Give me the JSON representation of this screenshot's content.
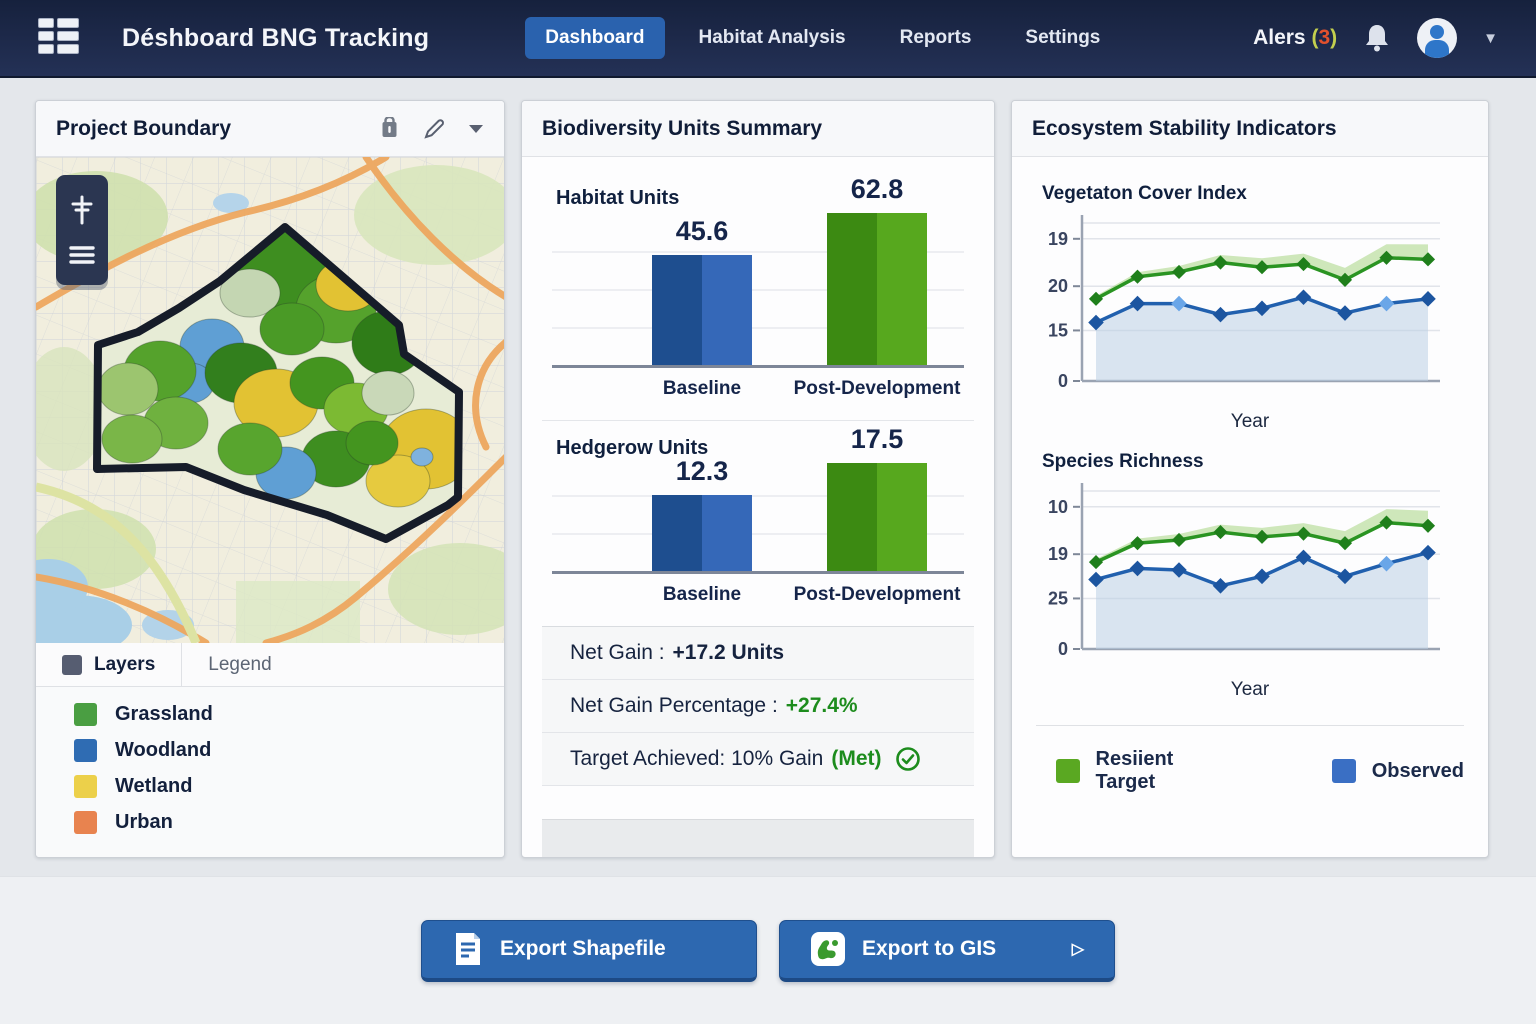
{
  "nav": {
    "title": "Déshboard BNG Tracking",
    "tabs": [
      {
        "label": "Dashboard",
        "active": true
      },
      {
        "label": "Habitat Analysis",
        "active": false
      },
      {
        "label": "Reports",
        "active": false
      },
      {
        "label": "Settings",
        "active": false
      }
    ],
    "alerts": {
      "label": "Alers",
      "count": "3",
      "paren_color": "#c3cf4e",
      "count_color": "#e2512d"
    }
  },
  "map_panel": {
    "title": "Project Boundary",
    "header_icons": [
      "trash-icon",
      "edit-pencil-icon",
      "chevron-down-icon"
    ],
    "tabs": [
      {
        "label": "Layers",
        "active": true
      },
      {
        "label": "Legend",
        "active": false
      }
    ],
    "legend": [
      {
        "label": "Grassland",
        "color": "#4a9e42"
      },
      {
        "label": "Woodland",
        "color": "#2f6cb3"
      },
      {
        "label": "Wetland",
        "color": "#ecd04a"
      },
      {
        "label": "Urban",
        "color": "#e8834f"
      }
    ]
  },
  "units_panel": {
    "title": "Biodiversity Units Summary",
    "stats": [
      {
        "prefix": "Net Gain :",
        "value": "+17.2 Units",
        "value_color": "#16233f",
        "check": false
      },
      {
        "prefix": "Net Gain Percentage :",
        "value": "+27.4%",
        "value_color": "#1d8c1d",
        "check": false
      },
      {
        "prefix": "Target Achieved: 10% Gain",
        "value": "(Met)",
        "value_color": "#1d8c1d",
        "check": true
      }
    ]
  },
  "eco_panel": {
    "title": "Ecosystem Stability Indicators",
    "legend": [
      {
        "label": "Resiient Target",
        "color": "#5aa822"
      },
      {
        "label": "Observed",
        "color": "#3a6fc4"
      }
    ]
  },
  "footer": {
    "buttons": [
      {
        "label": "Export Shapefile",
        "icon": "document-icon",
        "arrow": ""
      },
      {
        "label": "Export to GIS",
        "icon": "gis-map-icon",
        "arrow": "▷"
      }
    ]
  },
  "chart_data": [
    {
      "type": "bar",
      "title": "Habitat Units",
      "categories": [
        "Baseline",
        "Post-Development"
      ],
      "values": [
        45.6,
        62.8
      ],
      "ylim": [
        0,
        70
      ],
      "grid": true,
      "bar_colors": [
        [
          "#1e4e8f",
          "#3568b8"
        ],
        [
          "#3c8a12",
          "#57a81e"
        ]
      ]
    },
    {
      "type": "bar",
      "title": "Hedgerow Units",
      "categories": [
        "Baseline",
        "Post-Development"
      ],
      "values": [
        12.3,
        17.5
      ],
      "ylim": [
        0,
        20
      ],
      "grid": true,
      "bar_colors": [
        [
          "#1e4e8f",
          "#3568b8"
        ],
        [
          "#3c8a12",
          "#57a81e"
        ]
      ]
    },
    {
      "type": "line",
      "title": "Vegetaton Cover Index",
      "xlabel": "Year",
      "y_tick_labels_bottom_to_top": [
        "0",
        "15",
        "20",
        "19"
      ],
      "series": [
        {
          "name": "Resiient Target",
          "color": "#2a9422",
          "marker": "diamond",
          "band": true,
          "values_pct": [
            52,
            66,
            69,
            75,
            72,
            74,
            64,
            78,
            77
          ]
        },
        {
          "name": "Observed",
          "color": "#2160ae",
          "marker": "diamond",
          "area": true,
          "light_marker_indices": [
            2,
            7
          ],
          "values_pct": [
            37,
            49,
            49,
            42,
            46,
            53,
            43,
            49,
            52
          ]
        }
      ]
    },
    {
      "type": "line",
      "title": "Species Richness",
      "xlabel": "Year",
      "y_tick_labels_bottom_to_top": [
        "0",
        "25",
        "19",
        "10"
      ],
      "series": [
        {
          "name": "Resiient Target",
          "color": "#2a9422",
          "marker": "diamond",
          "band": true,
          "values_pct": [
            55,
            67,
            69,
            74,
            71,
            73,
            67,
            80,
            78
          ]
        },
        {
          "name": "Observed",
          "color": "#2160ae",
          "marker": "diamond",
          "area": true,
          "light_marker_indices": [
            7
          ],
          "values_pct": [
            44,
            51,
            50,
            40,
            46,
            58,
            46,
            54,
            61
          ]
        }
      ]
    }
  ]
}
